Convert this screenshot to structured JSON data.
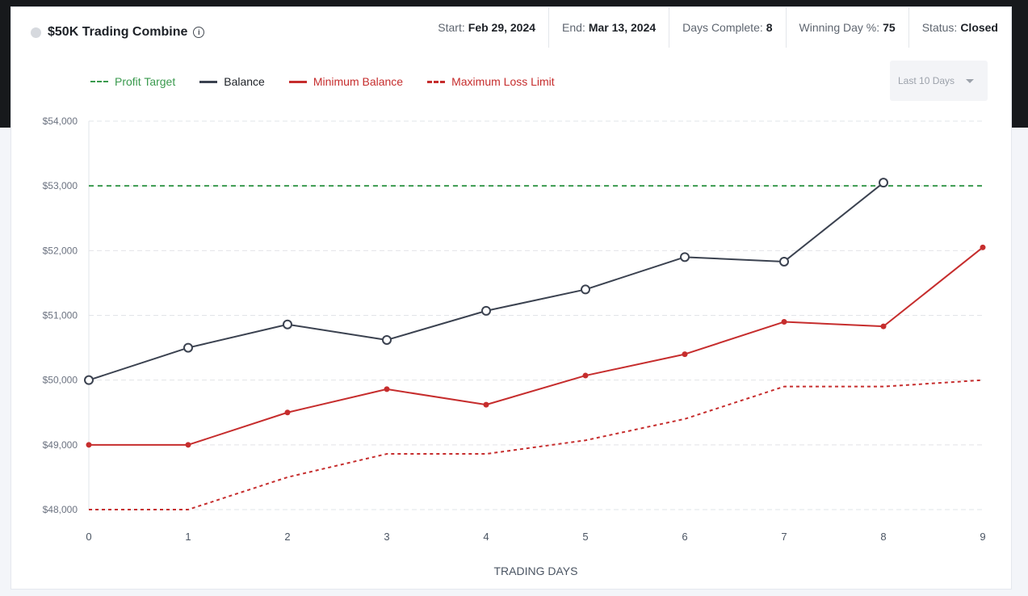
{
  "header": {
    "title": "$50K Trading Combine",
    "stats": [
      {
        "label": "Start:",
        "value": "Feb 29, 2024"
      },
      {
        "label": "End:",
        "value": "Mar 13, 2024"
      },
      {
        "label": "Days Complete:",
        "value": "8"
      },
      {
        "label": "Winning Day %:",
        "value": "75"
      },
      {
        "label": "Status:",
        "value": "Closed"
      }
    ]
  },
  "range_select": {
    "value": "Last 10 Days"
  },
  "colors": {
    "profit_target": "#3a9a4e",
    "balance": "#3b4250",
    "minimum_balance": "#c62d2d",
    "max_loss": "#c62d2d",
    "grid": "#e2e4e8"
  },
  "chart_data": {
    "type": "line",
    "xlabel": "TRADING DAYS",
    "ylabel": "",
    "x": [
      0,
      1,
      2,
      3,
      4,
      5,
      6,
      7,
      8,
      9
    ],
    "xticks": [
      "0",
      "1",
      "2",
      "3",
      "4",
      "5",
      "6",
      "7",
      "8",
      "9"
    ],
    "ylim": [
      48000,
      54000
    ],
    "yticks": [
      48000,
      49000,
      50000,
      51000,
      52000,
      53000,
      54000
    ],
    "ytick_labels": [
      "$48,000",
      "$49,000",
      "$50,000",
      "$51,000",
      "$52,000",
      "$53,000",
      "$54,000"
    ],
    "grid": true,
    "legend_position": "top-left",
    "series": [
      {
        "name": "Profit Target",
        "style": "dashed",
        "values": [
          53000,
          53000,
          53000,
          53000,
          53000,
          53000,
          53000,
          53000,
          53000,
          53000
        ]
      },
      {
        "name": "Balance",
        "style": "solid",
        "markers": "hollow",
        "values": [
          50000,
          50500,
          50860,
          50620,
          51070,
          51400,
          51900,
          51830,
          53050,
          null
        ]
      },
      {
        "name": "Minimum Balance",
        "style": "solid",
        "markers": "filled",
        "values": [
          49000,
          49000,
          49500,
          49860,
          49620,
          50070,
          50400,
          50900,
          50830,
          52050
        ]
      },
      {
        "name": "Maximum Loss Limit",
        "style": "dotted",
        "values": [
          48000,
          48000,
          48500,
          48860,
          48860,
          49070,
          49400,
          49900,
          49900,
          50000
        ]
      }
    ]
  }
}
